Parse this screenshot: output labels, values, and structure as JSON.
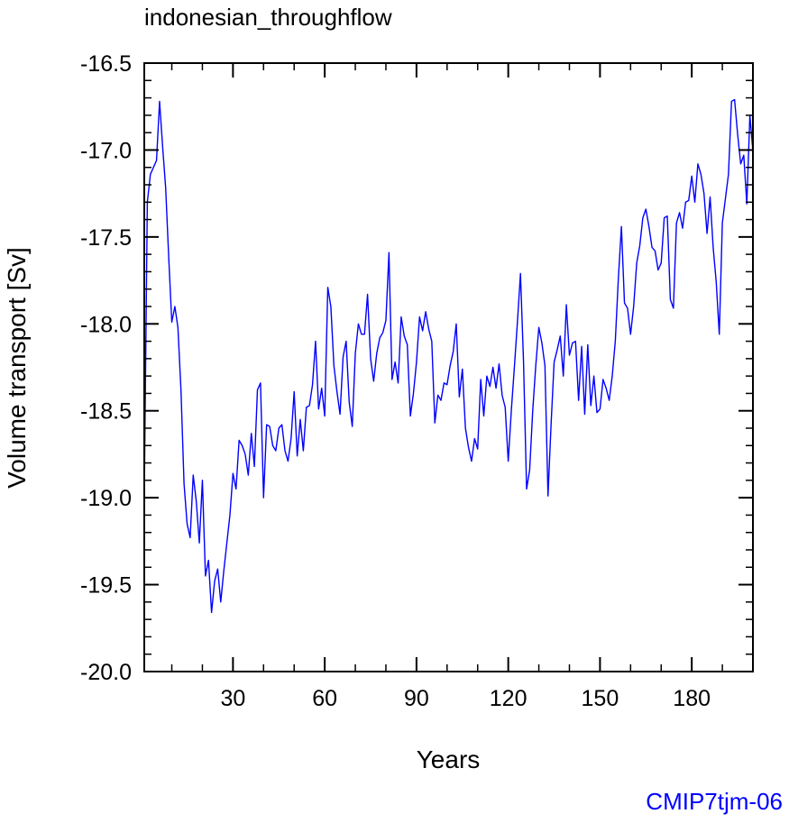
{
  "chart_data": {
    "type": "line",
    "title": "indonesian_throughflow",
    "xlabel": "Years",
    "ylabel": "Volume transport [Sv]",
    "xlim": [
      1,
      200
    ],
    "ylim": [
      -20.0,
      -16.5
    ],
    "xticks": [
      30,
      60,
      90,
      120,
      150,
      180
    ],
    "xtick_labels": [
      "30",
      "60",
      "90",
      "120",
      "150",
      "180"
    ],
    "yticks": [
      -20.0,
      -19.5,
      -19.0,
      -18.5,
      -18.0,
      -17.5,
      -17.0,
      -16.5
    ],
    "ytick_labels": [
      "-20.0",
      "-19.5",
      "-19.0",
      "-18.5",
      "-18.0",
      "-17.5",
      "-17.0",
      "-16.5"
    ],
    "grid": false,
    "line_color": "#0000ff",
    "series": [
      {
        "x": [
          1,
          2,
          3,
          4,
          5,
          6,
          7,
          8,
          9,
          10,
          11,
          12,
          13,
          14,
          15,
          16,
          17,
          18,
          19,
          20,
          21,
          22,
          23,
          24,
          25,
          26,
          27,
          28,
          29,
          30,
          31,
          32,
          33,
          34,
          35,
          36,
          37,
          38,
          39,
          40,
          41,
          42,
          43,
          44,
          45,
          46,
          47,
          48,
          49,
          50,
          51,
          52,
          53,
          54,
          55,
          56,
          57,
          58,
          59,
          60,
          61,
          62,
          63,
          64,
          65,
          66,
          67,
          68,
          69,
          70,
          71,
          72,
          73,
          74,
          75,
          76,
          77,
          78,
          79,
          80,
          81,
          82,
          83,
          84,
          85,
          86,
          87,
          88,
          89,
          90,
          91,
          92,
          93,
          94,
          95,
          96,
          97,
          98,
          99,
          100,
          101,
          102,
          103,
          104,
          105,
          106,
          107,
          108,
          109,
          110,
          111,
          112,
          113,
          114,
          115,
          116,
          117,
          118,
          119,
          120,
          121,
          122,
          123,
          124,
          125,
          126,
          127,
          128,
          129,
          130,
          131,
          132,
          133,
          134,
          135,
          136,
          137,
          138,
          139,
          140,
          141,
          142,
          143,
          144,
          145,
          146,
          147,
          148,
          149,
          150,
          151,
          152,
          153,
          154,
          155,
          156,
          157,
          158,
          159,
          160,
          161,
          162,
          163,
          164,
          165,
          166,
          167,
          168,
          169,
          170,
          171,
          172,
          173,
          174,
          175,
          176,
          177,
          178,
          179,
          180,
          181,
          182,
          183,
          184,
          185,
          186,
          187,
          188,
          189,
          190,
          191,
          192,
          193,
          194,
          195,
          196,
          197,
          198,
          199,
          200
        ],
        "y": [
          -19.0,
          -17.3,
          -17.14,
          -17.1,
          -17.06,
          -16.72,
          -16.98,
          -17.22,
          -17.62,
          -17.99,
          -17.9,
          -18.02,
          -18.38,
          -18.92,
          -19.15,
          -19.23,
          -18.87,
          -19.02,
          -19.26,
          -18.9,
          -19.45,
          -19.36,
          -19.66,
          -19.48,
          -19.41,
          -19.6,
          -19.42,
          -19.26,
          -19.1,
          -18.86,
          -18.95,
          -18.67,
          -18.7,
          -18.75,
          -18.87,
          -18.63,
          -18.82,
          -18.38,
          -18.34,
          -19.0,
          -18.58,
          -18.59,
          -18.7,
          -18.73,
          -18.6,
          -18.58,
          -18.73,
          -18.79,
          -18.66,
          -18.39,
          -18.76,
          -18.55,
          -18.73,
          -18.48,
          -18.47,
          -18.35,
          -18.1,
          -18.49,
          -18.37,
          -18.53,
          -17.79,
          -17.9,
          -18.24,
          -18.39,
          -18.52,
          -18.19,
          -18.1,
          -18.45,
          -18.59,
          -18.17,
          -18.0,
          -18.06,
          -18.06,
          -17.83,
          -18.2,
          -18.33,
          -18.17,
          -18.08,
          -18.05,
          -17.98,
          -17.59,
          -18.32,
          -18.22,
          -18.34,
          -17.96,
          -18.07,
          -18.12,
          -18.53,
          -18.4,
          -18.22,
          -17.96,
          -18.04,
          -17.93,
          -18.03,
          -18.1,
          -18.57,
          -18.41,
          -18.44,
          -18.34,
          -18.35,
          -18.24,
          -18.16,
          -18.0,
          -18.42,
          -18.26,
          -18.6,
          -18.71,
          -18.79,
          -18.66,
          -18.72,
          -18.32,
          -18.53,
          -18.3,
          -18.36,
          -18.25,
          -18.37,
          -18.23,
          -18.41,
          -18.48,
          -18.79,
          -18.5,
          -18.25,
          -17.99,
          -17.71,
          -18.22,
          -18.95,
          -18.84,
          -18.5,
          -18.24,
          -18.02,
          -18.11,
          -18.24,
          -18.99,
          -18.58,
          -18.22,
          -18.15,
          -18.07,
          -18.3,
          -17.89,
          -18.18,
          -18.11,
          -18.1,
          -18.44,
          -18.13,
          -18.52,
          -18.12,
          -18.47,
          -18.3,
          -18.51,
          -18.49,
          -18.32,
          -18.37,
          -18.44,
          -18.3,
          -18.1,
          -17.74,
          -17.44,
          -17.88,
          -17.91,
          -18.06,
          -17.9,
          -17.65,
          -17.55,
          -17.39,
          -17.34,
          -17.44,
          -17.56,
          -17.58,
          -17.69,
          -17.65,
          -17.39,
          -17.38,
          -17.86,
          -17.91,
          -17.42,
          -17.36,
          -17.45,
          -17.3,
          -17.29,
          -17.15,
          -17.3,
          -17.08,
          -17.14,
          -17.25,
          -17.48,
          -17.27,
          -17.56,
          -17.76,
          -18.06,
          -17.42,
          -17.28,
          -17.14,
          -16.72,
          -16.71,
          -16.91,
          -17.08,
          -17.03,
          -17.31,
          -16.8,
          -17.01
        ]
      }
    ]
  },
  "footer": {
    "label": "CMIP7tjm-06",
    "color": "#0000ff"
  }
}
